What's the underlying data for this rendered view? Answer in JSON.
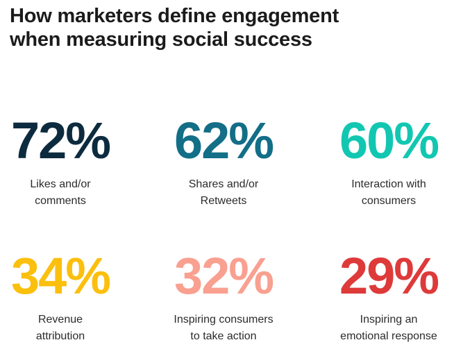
{
  "title_lines": [
    "How marketers define engagement",
    "when measuring social success"
  ],
  "chart_data": {
    "type": "table",
    "title": "How marketers define engagement when measuring social success",
    "unit": "%",
    "items": [
      {
        "value": 72,
        "display": "72%",
        "label_lines": [
          "Likes and/or",
          "comments"
        ],
        "color": "#0d2b3e"
      },
      {
        "value": 62,
        "display": "62%",
        "label_lines": [
          "Shares and/or",
          "Retweets"
        ],
        "color": "#136e87"
      },
      {
        "value": 60,
        "display": "60%",
        "label_lines": [
          "Interaction with",
          "consumers"
        ],
        "color": "#12c7b1"
      },
      {
        "value": 34,
        "display": "34%",
        "label_lines": [
          "Revenue",
          "attribution"
        ],
        "color": "#fbbf0e"
      },
      {
        "value": 32,
        "display": "32%",
        "label_lines": [
          "Inspiring consumers",
          "to take action"
        ],
        "color": "#f9a090"
      },
      {
        "value": 29,
        "display": "29%",
        "label_lines": [
          "Inspiring an",
          "emotional response"
        ],
        "color": "#de3a3a"
      }
    ]
  }
}
